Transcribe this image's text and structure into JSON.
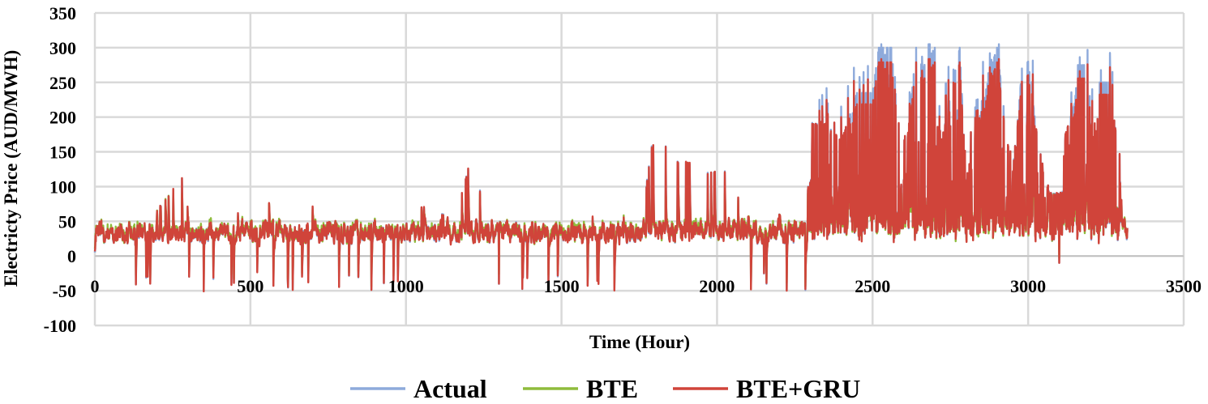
{
  "chart_data": {
    "type": "line",
    "title": "",
    "xlabel": "Time (Hour)",
    "ylabel": "Electricty Price (AUD/MWH)",
    "xlim": [
      0,
      3500
    ],
    "ylim": [
      -100,
      350
    ],
    "xticks": [
      0,
      500,
      1000,
      1500,
      2000,
      2500,
      3000,
      3500
    ],
    "yticks": [
      -100,
      -50,
      0,
      50,
      100,
      150,
      200,
      250,
      300,
      350
    ],
    "grid": true,
    "legend_position": "bottom",
    "n_points": 3320,
    "series": [
      {
        "name": "Actual",
        "color": "#8eaadb"
      },
      {
        "name": "BTE",
        "color": "#8fbc3c"
      },
      {
        "name": "BTE+GRU",
        "color": "#d0443a"
      }
    ],
    "key_points": [
      [
        0,
        5
      ],
      [
        40,
        30
      ],
      [
        130,
        15
      ],
      [
        170,
        -30
      ],
      [
        200,
        65
      ],
      [
        280,
        112
      ],
      [
        350,
        -50
      ],
      [
        400,
        30
      ],
      [
        460,
        60
      ],
      [
        500,
        45
      ],
      [
        560,
        75
      ],
      [
        620,
        -35
      ],
      [
        700,
        70
      ],
      [
        780,
        40
      ],
      [
        900,
        50
      ],
      [
        960,
        -35
      ],
      [
        1000,
        40
      ],
      [
        1050,
        70
      ],
      [
        1120,
        60
      ],
      [
        1180,
        90
      ],
      [
        1200,
        125
      ],
      [
        1300,
        45
      ],
      [
        1390,
        -30
      ],
      [
        1500,
        40
      ],
      [
        1600,
        55
      ],
      [
        1700,
        55
      ],
      [
        1760,
        35
      ],
      [
        1775,
        110
      ],
      [
        1790,
        158
      ],
      [
        1835,
        158
      ],
      [
        1875,
        135
      ],
      [
        1900,
        135
      ],
      [
        1970,
        120
      ],
      [
        2025,
        122
      ],
      [
        2100,
        55
      ],
      [
        2200,
        60
      ],
      [
        2300,
        50
      ],
      [
        2310,
        190
      ],
      [
        2350,
        190
      ],
      [
        2400,
        165
      ],
      [
        2450,
        235
      ],
      [
        2500,
        235
      ],
      [
        2520,
        300
      ],
      [
        2560,
        300
      ],
      [
        2600,
        110
      ],
      [
        2640,
        300
      ],
      [
        2660,
        270
      ],
      [
        2700,
        300
      ],
      [
        2720,
        160
      ],
      [
        2780,
        300
      ],
      [
        2800,
        110
      ],
      [
        2880,
        270
      ],
      [
        2900,
        300
      ],
      [
        2950,
        100
      ],
      [
        2980,
        270
      ],
      [
        3000,
        280
      ],
      [
        3060,
        55
      ],
      [
        3100,
        -10
      ],
      [
        3120,
        175
      ],
      [
        3150,
        220
      ],
      [
        3160,
        275
      ],
      [
        3180,
        275
      ],
      [
        3220,
        175
      ],
      [
        3230,
        250
      ],
      [
        3260,
        250
      ],
      [
        3280,
        185
      ],
      [
        3300,
        80
      ],
      [
        3320,
        -25
      ]
    ]
  }
}
